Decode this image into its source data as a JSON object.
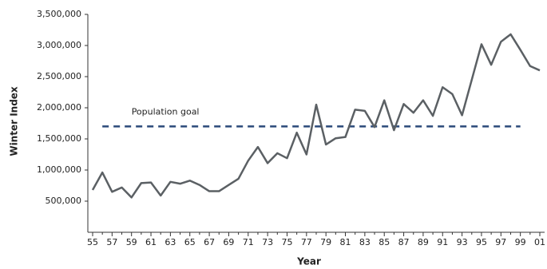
{
  "chart_data": {
    "type": "line",
    "x_label": "Year",
    "y_label": "Winter Index",
    "categories": [
      "55",
      null,
      "57",
      null,
      "59",
      null,
      "61",
      null,
      "63",
      null,
      "65",
      null,
      "67",
      null,
      "69",
      null,
      "71",
      null,
      "73",
      null,
      "75",
      null,
      "77",
      null,
      "79",
      null,
      "81",
      null,
      "83",
      null,
      "85",
      null,
      "87",
      null,
      "89",
      null,
      "91",
      null,
      "93",
      null,
      "95",
      null,
      "97",
      null,
      "99",
      null,
      "01"
    ],
    "series": [
      {
        "color": "#5b6064",
        "values": [
          680000,
          960000,
          650000,
          720000,
          560000,
          790000,
          800000,
          590000,
          810000,
          780000,
          830000,
          760000,
          660000,
          660000,
          760000,
          860000,
          1150000,
          1370000,
          1110000,
          1270000,
          1190000,
          1600000,
          1250000,
          2050000,
          1410000,
          1510000,
          1530000,
          1970000,
          1950000,
          1690000,
          2120000,
          1640000,
          2060000,
          1920000,
          2120000,
          1870000,
          2330000,
          2220000,
          1880000,
          2450000,
          3020000,
          2690000,
          3060000,
          3180000,
          2930000,
          2670000,
          2600000
        ]
      }
    ],
    "goal": {
      "label": "Population goal",
      "value": 1700000,
      "color": "#2b4a7a"
    },
    "ylim": [
      0,
      3500000
    ],
    "yticks": [
      {
        "value": 500000,
        "label": "500,000"
      },
      {
        "value": 1000000,
        "label": "1,000,000"
      },
      {
        "value": 1500000,
        "label": "1,500,000"
      },
      {
        "value": 2000000,
        "label": "2,000,000"
      },
      {
        "value": 2500000,
        "label": "2,500,000"
      },
      {
        "value": 3000000,
        "label": "3,000,000"
      },
      {
        "value": 3500000,
        "label": "3,500,000"
      }
    ]
  }
}
